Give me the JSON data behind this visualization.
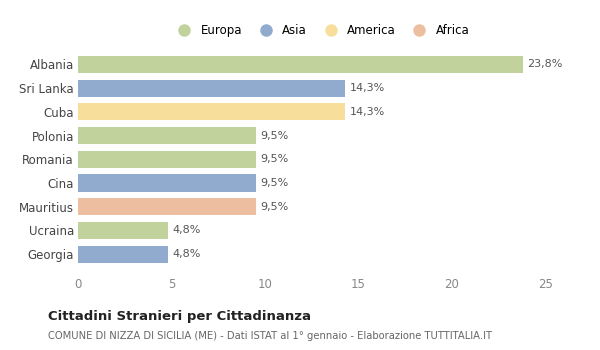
{
  "categories": [
    "Albania",
    "Sri Lanka",
    "Cuba",
    "Polonia",
    "Romania",
    "Cina",
    "Mauritius",
    "Ucraina",
    "Georgia"
  ],
  "values": [
    23.8,
    14.3,
    14.3,
    9.5,
    9.5,
    9.5,
    9.5,
    4.8,
    4.8
  ],
  "labels": [
    "23,8%",
    "14,3%",
    "14,3%",
    "9,5%",
    "9,5%",
    "9,5%",
    "9,5%",
    "4,8%",
    "4,8%"
  ],
  "colors": [
    "#adc47d",
    "#6b8fbe",
    "#f5d47a",
    "#adc47d",
    "#adc47d",
    "#6b8fbe",
    "#e8aa80",
    "#adc47d",
    "#6b8fbe"
  ],
  "legend_labels": [
    "Europa",
    "Asia",
    "America",
    "Africa"
  ],
  "legend_colors": [
    "#adc47d",
    "#6b8fbe",
    "#f5d47a",
    "#e8aa80"
  ],
  "title": "Cittadini Stranieri per Cittadinanza",
  "subtitle": "COMUNE DI NIZZA DI SICILIA (ME) - Dati ISTAT al 1° gennaio - Elaborazione TUTTITALIA.IT",
  "xlim": [
    0,
    26
  ],
  "xticks": [
    0,
    5,
    10,
    15,
    20,
    25
  ],
  "bg_color": "#ffffff",
  "bar_alpha": 0.75,
  "bar_height": 0.72
}
